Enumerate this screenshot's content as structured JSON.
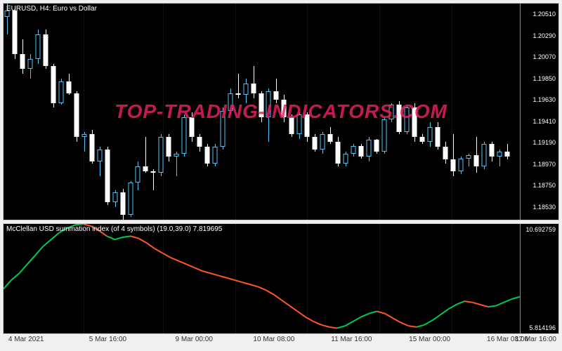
{
  "main": {
    "title": "EURUSD, H4:  Euro vs  Dollar",
    "title_color": "#ffffff",
    "background": "#000000",
    "ymin": 1.184,
    "ymax": 1.2062,
    "yticks": [
      1.2051,
      1.2029,
      1.2007,
      1.1985,
      1.1963,
      1.1941,
      1.1919,
      1.1897,
      1.1875,
      1.1853
    ],
    "candle_up_fill": "#000000",
    "candle_up_border": "#4fc3f7",
    "candle_down_fill": "#ffffff",
    "candle_down_border": "#ffffff",
    "wick_up": "#4fc3f7",
    "wick_down": "#ffffff",
    "candle_width": 7,
    "candles": [
      {
        "o": 1.2048,
        "h": 1.2062,
        "l": 1.203,
        "c": 1.2055
      },
      {
        "o": 1.2055,
        "h": 1.2058,
        "l": 1.2005,
        "c": 1.201
      },
      {
        "o": 1.201,
        "h": 1.2025,
        "l": 1.199,
        "c": 1.1995
      },
      {
        "o": 1.1995,
        "h": 1.201,
        "l": 1.1985,
        "c": 1.2005
      },
      {
        "o": 1.2005,
        "h": 1.2035,
        "l": 1.2,
        "c": 1.203
      },
      {
        "o": 1.203,
        "h": 1.2035,
        "l": 1.1995,
        "c": 1.1998
      },
      {
        "o": 1.1998,
        "h": 1.2,
        "l": 1.1955,
        "c": 1.196
      },
      {
        "o": 1.196,
        "h": 1.1985,
        "l": 1.1958,
        "c": 1.1982
      },
      {
        "o": 1.1982,
        "h": 1.199,
        "l": 1.1968,
        "c": 1.197
      },
      {
        "o": 1.197,
        "h": 1.1972,
        "l": 1.192,
        "c": 1.1925
      },
      {
        "o": 1.1925,
        "h": 1.193,
        "l": 1.191,
        "c": 1.1928
      },
      {
        "o": 1.1928,
        "h": 1.1932,
        "l": 1.1898,
        "c": 1.19
      },
      {
        "o": 1.19,
        "h": 1.1915,
        "l": 1.1885,
        "c": 1.1912
      },
      {
        "o": 1.1912,
        "h": 1.1915,
        "l": 1.1855,
        "c": 1.1858
      },
      {
        "o": 1.1858,
        "h": 1.187,
        "l": 1.1853,
        "c": 1.1868
      },
      {
        "o": 1.1868,
        "h": 1.1872,
        "l": 1.184,
        "c": 1.1845
      },
      {
        "o": 1.1845,
        "h": 1.188,
        "l": 1.1843,
        "c": 1.1878
      },
      {
        "o": 1.1878,
        "h": 1.19,
        "l": 1.187,
        "c": 1.1895
      },
      {
        "o": 1.1895,
        "h": 1.1925,
        "l": 1.1888,
        "c": 1.189
      },
      {
        "o": 1.189,
        "h": 1.1892,
        "l": 1.187,
        "c": 1.1888
      },
      {
        "o": 1.1888,
        "h": 1.1928,
        "l": 1.1885,
        "c": 1.1925
      },
      {
        "o": 1.1925,
        "h": 1.1928,
        "l": 1.19,
        "c": 1.1905
      },
      {
        "o": 1.1905,
        "h": 1.191,
        "l": 1.1885,
        "c": 1.1908
      },
      {
        "o": 1.1908,
        "h": 1.1948,
        "l": 1.1905,
        "c": 1.1945
      },
      {
        "o": 1.1945,
        "h": 1.195,
        "l": 1.192,
        "c": 1.1925
      },
      {
        "o": 1.1925,
        "h": 1.1928,
        "l": 1.191,
        "c": 1.1915
      },
      {
        "o": 1.1915,
        "h": 1.1918,
        "l": 1.1895,
        "c": 1.1898
      },
      {
        "o": 1.1898,
        "h": 1.1918,
        "l": 1.1895,
        "c": 1.1915
      },
      {
        "o": 1.1915,
        "h": 1.1955,
        "l": 1.1912,
        "c": 1.1952
      },
      {
        "o": 1.1952,
        "h": 1.1975,
        "l": 1.1948,
        "c": 1.197
      },
      {
        "o": 1.197,
        "h": 1.199,
        "l": 1.1965,
        "c": 1.1968
      },
      {
        "o": 1.1968,
        "h": 1.1985,
        "l": 1.196,
        "c": 1.198
      },
      {
        "o": 1.198,
        "h": 1.1998,
        "l": 1.1965,
        "c": 1.197
      },
      {
        "o": 1.197,
        "h": 1.1972,
        "l": 1.194,
        "c": 1.1945
      },
      {
        "o": 1.1945,
        "h": 1.1975,
        "l": 1.192,
        "c": 1.1972
      },
      {
        "o": 1.1972,
        "h": 1.1985,
        "l": 1.196,
        "c": 1.1963
      },
      {
        "o": 1.1963,
        "h": 1.1968,
        "l": 1.194,
        "c": 1.1945
      },
      {
        "o": 1.1945,
        "h": 1.1948,
        "l": 1.1925,
        "c": 1.1928
      },
      {
        "o": 1.1928,
        "h": 1.195,
        "l": 1.1923,
        "c": 1.1948
      },
      {
        "o": 1.1948,
        "h": 1.195,
        "l": 1.192,
        "c": 1.1925
      },
      {
        "o": 1.1925,
        "h": 1.1928,
        "l": 1.191,
        "c": 1.1912
      },
      {
        "o": 1.1912,
        "h": 1.193,
        "l": 1.1908,
        "c": 1.1928
      },
      {
        "o": 1.1928,
        "h": 1.1935,
        "l": 1.1918,
        "c": 1.192
      },
      {
        "o": 1.192,
        "h": 1.1925,
        "l": 1.1895,
        "c": 1.1898
      },
      {
        "o": 1.1898,
        "h": 1.191,
        "l": 1.1895,
        "c": 1.1908
      },
      {
        "o": 1.1908,
        "h": 1.1918,
        "l": 1.1905,
        "c": 1.1916
      },
      {
        "o": 1.1916,
        "h": 1.1918,
        "l": 1.1903,
        "c": 1.1905
      },
      {
        "o": 1.1905,
        "h": 1.1925,
        "l": 1.19,
        "c": 1.1922
      },
      {
        "o": 1.1922,
        "h": 1.1923,
        "l": 1.1908,
        "c": 1.191
      },
      {
        "o": 1.191,
        "h": 1.1945,
        "l": 1.1908,
        "c": 1.1943
      },
      {
        "o": 1.1943,
        "h": 1.196,
        "l": 1.194,
        "c": 1.1958
      },
      {
        "o": 1.1958,
        "h": 1.1962,
        "l": 1.1928,
        "c": 1.193
      },
      {
        "o": 1.193,
        "h": 1.1958,
        "l": 1.1928,
        "c": 1.1955
      },
      {
        "o": 1.1955,
        "h": 1.196,
        "l": 1.192,
        "c": 1.1925
      },
      {
        "o": 1.1925,
        "h": 1.1928,
        "l": 1.1918,
        "c": 1.192
      },
      {
        "o": 1.192,
        "h": 1.194,
        "l": 1.1915,
        "c": 1.1935
      },
      {
        "o": 1.1935,
        "h": 1.194,
        "l": 1.1912,
        "c": 1.1915
      },
      {
        "o": 1.1915,
        "h": 1.192,
        "l": 1.1898,
        "c": 1.1902
      },
      {
        "o": 1.1902,
        "h": 1.1928,
        "l": 1.1885,
        "c": 1.189
      },
      {
        "o": 1.189,
        "h": 1.1905,
        "l": 1.1887,
        "c": 1.1903
      },
      {
        "o": 1.1903,
        "h": 1.1908,
        "l": 1.1895,
        "c": 1.1906
      },
      {
        "o": 1.1906,
        "h": 1.1925,
        "l": 1.1888,
        "c": 1.1895
      },
      {
        "o": 1.1895,
        "h": 1.192,
        "l": 1.1892,
        "c": 1.1918
      },
      {
        "o": 1.1918,
        "h": 1.192,
        "l": 1.19,
        "c": 1.1905
      },
      {
        "o": 1.1905,
        "h": 1.1912,
        "l": 1.1895,
        "c": 1.191
      },
      {
        "o": 1.191,
        "h": 1.1918,
        "l": 1.1902,
        "c": 1.1905
      }
    ]
  },
  "sub": {
    "title": "McClellan USD summation index (of 4 symbols) (19.0,39.0) 7.819695",
    "background": "#000000",
    "ymin": 5.814196,
    "ymax": 10.692759,
    "yticks": [
      10.692759,
      5.814196
    ],
    "line_up_color": "#00c853",
    "line_down_color": "#ff5722",
    "line_width": 2,
    "points": [
      {
        "v": 7.8,
        "d": "up"
      },
      {
        "v": 8.2,
        "d": "up"
      },
      {
        "v": 8.5,
        "d": "up"
      },
      {
        "v": 8.9,
        "d": "up"
      },
      {
        "v": 9.3,
        "d": "up"
      },
      {
        "v": 9.7,
        "d": "up"
      },
      {
        "v": 10.0,
        "d": "up"
      },
      {
        "v": 10.3,
        "d": "up"
      },
      {
        "v": 10.5,
        "d": "up"
      },
      {
        "v": 10.65,
        "d": "up"
      },
      {
        "v": 10.69,
        "d": "up"
      },
      {
        "v": 10.6,
        "d": "down"
      },
      {
        "v": 10.4,
        "d": "down"
      },
      {
        "v": 10.15,
        "d": "down"
      },
      {
        "v": 10.0,
        "d": "up"
      },
      {
        "v": 10.1,
        "d": "up"
      },
      {
        "v": 10.15,
        "d": "up"
      },
      {
        "v": 10.05,
        "d": "down"
      },
      {
        "v": 9.85,
        "d": "down"
      },
      {
        "v": 9.6,
        "d": "down"
      },
      {
        "v": 9.4,
        "d": "down"
      },
      {
        "v": 9.2,
        "d": "down"
      },
      {
        "v": 9.05,
        "d": "down"
      },
      {
        "v": 8.9,
        "d": "down"
      },
      {
        "v": 8.75,
        "d": "down"
      },
      {
        "v": 8.6,
        "d": "down"
      },
      {
        "v": 8.5,
        "d": "down"
      },
      {
        "v": 8.4,
        "d": "down"
      },
      {
        "v": 8.3,
        "d": "down"
      },
      {
        "v": 8.2,
        "d": "down"
      },
      {
        "v": 8.1,
        "d": "down"
      },
      {
        "v": 8.0,
        "d": "down"
      },
      {
        "v": 7.9,
        "d": "down"
      },
      {
        "v": 7.75,
        "d": "down"
      },
      {
        "v": 7.55,
        "d": "down"
      },
      {
        "v": 7.3,
        "d": "down"
      },
      {
        "v": 7.05,
        "d": "down"
      },
      {
        "v": 6.8,
        "d": "down"
      },
      {
        "v": 6.55,
        "d": "down"
      },
      {
        "v": 6.35,
        "d": "down"
      },
      {
        "v": 6.2,
        "d": "down"
      },
      {
        "v": 6.1,
        "d": "down"
      },
      {
        "v": 6.05,
        "d": "down"
      },
      {
        "v": 6.15,
        "d": "up"
      },
      {
        "v": 6.35,
        "d": "up"
      },
      {
        "v": 6.55,
        "d": "up"
      },
      {
        "v": 6.7,
        "d": "up"
      },
      {
        "v": 6.8,
        "d": "up"
      },
      {
        "v": 6.7,
        "d": "down"
      },
      {
        "v": 6.5,
        "d": "down"
      },
      {
        "v": 6.3,
        "d": "down"
      },
      {
        "v": 6.15,
        "d": "down"
      },
      {
        "v": 6.1,
        "d": "down"
      },
      {
        "v": 6.2,
        "d": "up"
      },
      {
        "v": 6.4,
        "d": "up"
      },
      {
        "v": 6.65,
        "d": "up"
      },
      {
        "v": 6.9,
        "d": "up"
      },
      {
        "v": 7.1,
        "d": "up"
      },
      {
        "v": 7.25,
        "d": "up"
      },
      {
        "v": 7.2,
        "d": "down"
      },
      {
        "v": 7.1,
        "d": "down"
      },
      {
        "v": 7.0,
        "d": "down"
      },
      {
        "v": 7.05,
        "d": "up"
      },
      {
        "v": 7.2,
        "d": "up"
      },
      {
        "v": 7.35,
        "d": "up"
      },
      {
        "v": 7.45,
        "d": "up"
      }
    ]
  },
  "x_axis": {
    "labels": [
      {
        "text": "4 Mar 2021",
        "pos": 0.01
      },
      {
        "text": "5 Mar 16:00",
        "pos": 0.155
      },
      {
        "text": "9 Mar 00:00",
        "pos": 0.31
      },
      {
        "text": "10 Mar 08:00",
        "pos": 0.45
      },
      {
        "text": "11 Mar 16:00",
        "pos": 0.59
      },
      {
        "text": "15 Mar 00:00",
        "pos": 0.73
      },
      {
        "text": "16 Mar 08:00",
        "pos": 0.87
      },
      {
        "text": "17 Mar 16:00",
        "pos": 0.975
      }
    ],
    "grid_positions": [
      0.155,
      0.31,
      0.45,
      0.59,
      0.73,
      0.87
    ]
  },
  "watermark": {
    "text": "TOP-TRADING-INDICATORS.COM",
    "color": "#e91e63",
    "fontsize": 28
  }
}
